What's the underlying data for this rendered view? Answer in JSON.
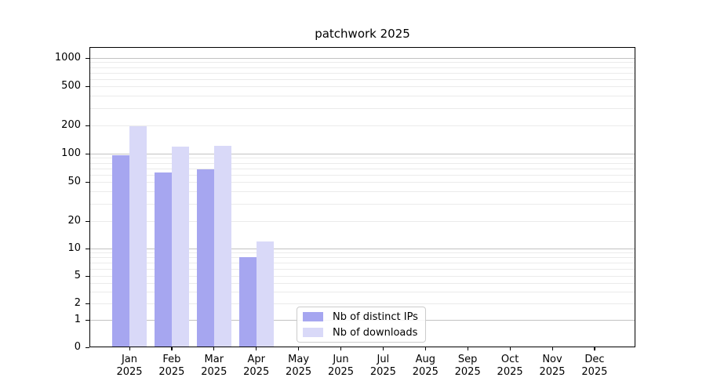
{
  "title": "patchwork 2025",
  "colors": {
    "distinct_ips": "#a6a6f0",
    "downloads": "#d9d9f8",
    "grid_minor": "#ebebeb",
    "grid_major": "#c2c2c2"
  },
  "legend": {
    "items": [
      {
        "label": "Nb of distinct IPs",
        "color": "#a6a6f0"
      },
      {
        "label": "Nb of downloads",
        "color": "#d9d9f8"
      }
    ]
  },
  "chart_data": {
    "type": "bar",
    "title": "patchwork 2025",
    "xlabel": "",
    "ylabel": "",
    "x_categories": [
      "Jan",
      "Feb",
      "Mar",
      "Apr",
      "May",
      "Jun",
      "Jul",
      "Aug",
      "Sep",
      "Oct",
      "Nov",
      "Dec"
    ],
    "x_year": "2025",
    "series": [
      {
        "name": "Nb of distinct IPs",
        "color": "#a6a6f0",
        "values": [
          97,
          63,
          68,
          8,
          0,
          0,
          0,
          0,
          0,
          0,
          0,
          0
        ]
      },
      {
        "name": "Nb of downloads",
        "color": "#d9d9f8",
        "values": [
          195,
          120,
          122,
          12,
          0,
          0,
          0,
          0,
          0,
          0,
          0,
          0
        ]
      }
    ],
    "y_axis": {
      "scale": "symlog",
      "tick_values": [
        0,
        1,
        2,
        5,
        10,
        20,
        50,
        100,
        200,
        500,
        1000
      ],
      "tick_labels": [
        "0",
        "1",
        "2",
        "5",
        "10",
        "20",
        "50",
        "100",
        "200",
        "500",
        "1000"
      ],
      "minor_grid_values": [
        2,
        3,
        4,
        5,
        6,
        7,
        8,
        9,
        20,
        30,
        40,
        50,
        60,
        70,
        80,
        90,
        200,
        300,
        400,
        500,
        600,
        700,
        800,
        900
      ],
      "major_grid_values": [
        1,
        10,
        100,
        1000
      ],
      "ylim": [
        0,
        1300
      ]
    },
    "grid": "horizontal",
    "legend_position": "lower center inside plot"
  }
}
